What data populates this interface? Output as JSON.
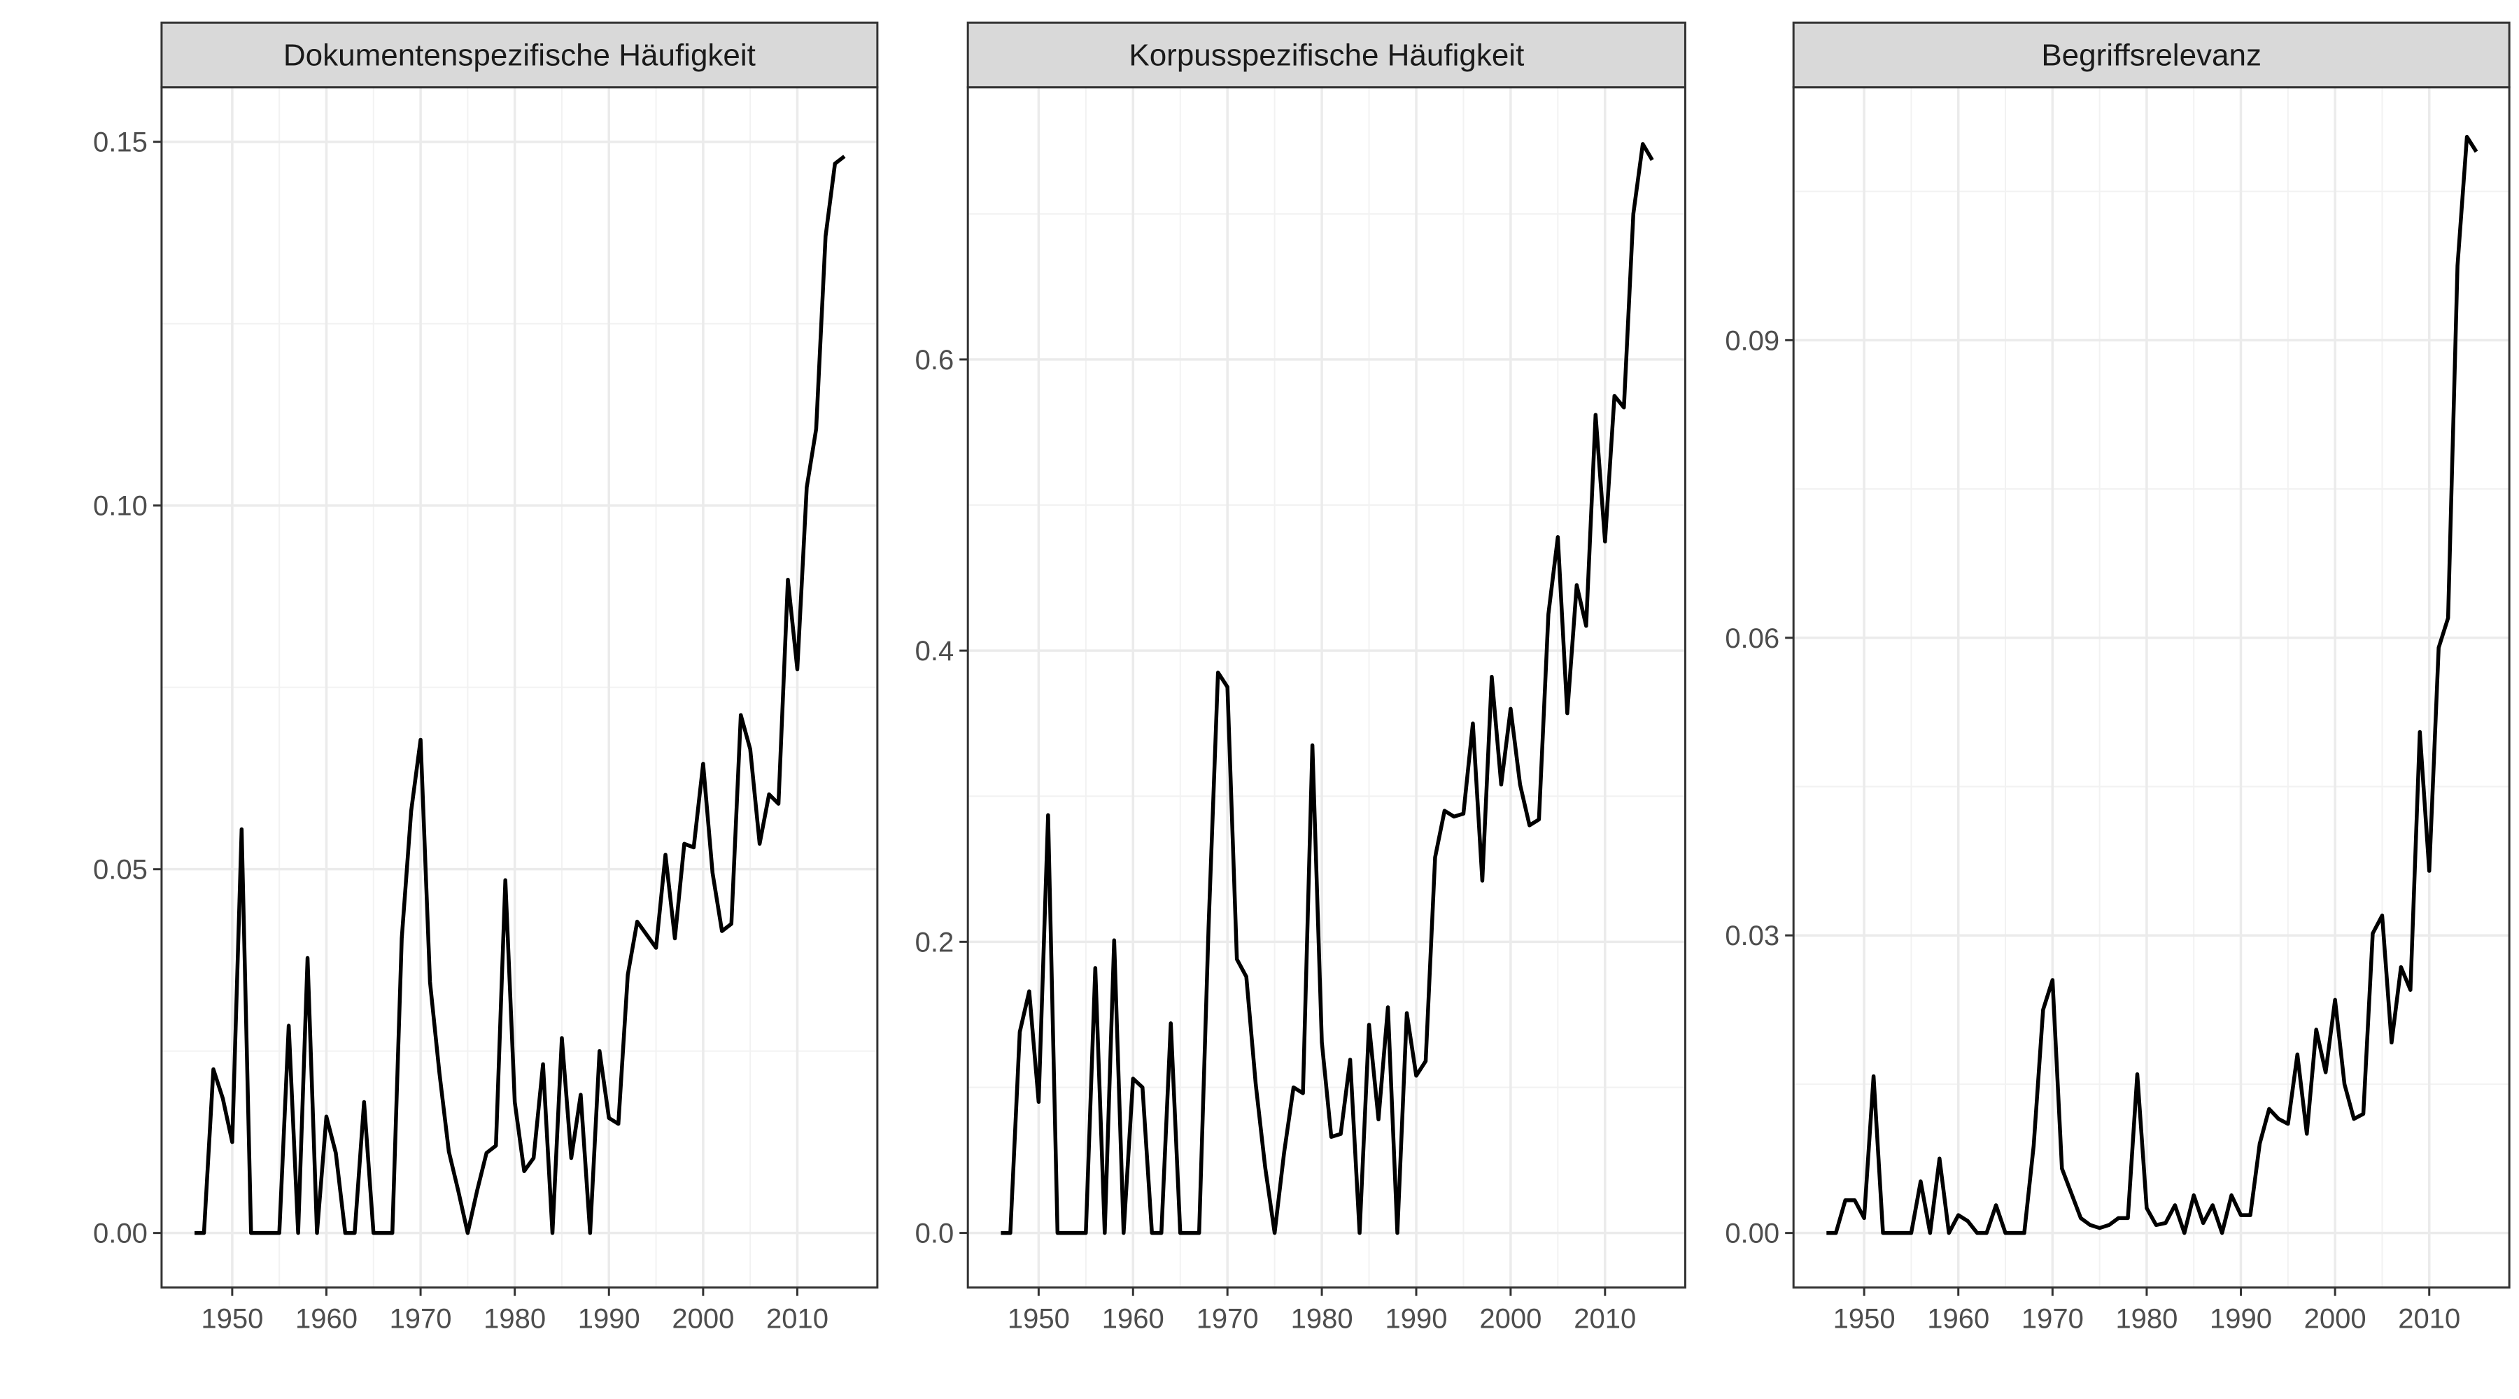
{
  "chart_data": [
    {
      "type": "line",
      "title": "Dokumentenspezifische Häufigkeit",
      "xlabel": "",
      "ylabel": "",
      "xlim": [
        1945.2,
        1952.0
      ],
      "ylim": [
        -0.0075,
        0.1575
      ],
      "x_ticks": [
        1950,
        1960,
        1970,
        1980,
        1990,
        2000,
        2010
      ],
      "x_tick_labels": [
        "1950",
        "1960",
        "1970",
        "1980",
        "1990",
        "2000",
        "2010"
      ],
      "y_ticks": [
        0.0,
        0.05,
        0.1,
        0.15
      ],
      "y_tick_labels": [
        "0.00",
        "0.05",
        "0.10",
        "0.15"
      ],
      "grid": true,
      "series": [
        {
          "color": "#000000",
          "x": [
            1946,
            1947,
            1948,
            1949,
            1950,
            1951,
            1952,
            1953,
            1954,
            1955,
            1956,
            1957,
            1958,
            1959,
            1960,
            1961,
            1962,
            1963,
            1964,
            1965,
            1966,
            1967,
            1968,
            1969,
            1970,
            1971,
            1972,
            1973,
            1974,
            1975,
            1976,
            1977,
            1978,
            1979,
            1980,
            1981,
            1982,
            1983,
            1984,
            1985,
            1986,
            1987,
            1988,
            1989,
            1990,
            1991,
            1992,
            1993,
            1994,
            1995,
            1996,
            1997,
            1998,
            1999,
            2000,
            2001,
            2002,
            2003,
            2004,
            2005,
            2006,
            2007,
            2008,
            2009,
            2010,
            2011,
            2012,
            2013,
            2014,
            2015
          ],
          "values": [
            0,
            0,
            0.0225,
            0.0185,
            0.0125,
            0.0555,
            0,
            0,
            0,
            0,
            0.0285,
            0,
            0.0378,
            0,
            0.016,
            0.011,
            0,
            0,
            0.018,
            0,
            0,
            0,
            0.0405,
            0.058,
            0.0678,
            0.0345,
            0.022,
            0.0112,
            0.0058,
            0,
            0.0058,
            0.011,
            0.012,
            0.0485,
            0.018,
            0.0085,
            0.0103,
            0.0232,
            0,
            0.0268,
            0.0103,
            0.019,
            0,
            0.025,
            0.0158,
            0.015,
            0.0355,
            0.0428,
            0.041,
            0.0392,
            0.052,
            0.0405,
            0.0535,
            0.053,
            0.0645,
            0.0495,
            0.0415,
            0.0425,
            0.0712,
            0.0665,
            0.0535,
            0.0603,
            0.059,
            0.0898,
            0.0775,
            0.1025,
            0.1105,
            0.137,
            0.147,
            0.148
          ]
        }
      ]
    },
    {
      "type": "line",
      "title": "Korpusspezifische Häufigkeit",
      "xlabel": "",
      "ylabel": "",
      "ylim": [
        -0.0375,
        0.787
      ],
      "x_ticks": [
        1950,
        1960,
        1970,
        1980,
        1990,
        2000,
        2010
      ],
      "x_tick_labels": [
        "1950",
        "1960",
        "1970",
        "1980",
        "1990",
        "2000",
        "2010"
      ],
      "y_ticks": [
        0.0,
        0.2,
        0.4,
        0.6
      ],
      "y_tick_labels": [
        "0.0",
        "0.2",
        "0.4",
        "0.6"
      ],
      "grid": true,
      "series": [
        {
          "color": "#000000",
          "x": [
            1946,
            1947,
            1948,
            1949,
            1950,
            1951,
            1952,
            1953,
            1954,
            1955,
            1956,
            1957,
            1958,
            1959,
            1960,
            1961,
            1962,
            1963,
            1964,
            1965,
            1966,
            1967,
            1968,
            1969,
            1970,
            1971,
            1972,
            1973,
            1974,
            1975,
            1976,
            1977,
            1978,
            1979,
            1980,
            1981,
            1982,
            1983,
            1984,
            1985,
            1986,
            1987,
            1988,
            1989,
            1990,
            1991,
            1992,
            1993,
            1994,
            1995,
            1996,
            1997,
            1998,
            1999,
            2000,
            2001,
            2002,
            2003,
            2004,
            2005,
            2006,
            2007,
            2008,
            2009,
            2010,
            2011,
            2012,
            2013,
            2014,
            2015
          ],
          "values": [
            0,
            0,
            0.138,
            0.166,
            0.09,
            0.287,
            0,
            0,
            0,
            0,
            0.182,
            0,
            0.201,
            0,
            0.106,
            0.1,
            0,
            0,
            0.144,
            0,
            0,
            0,
            0.21,
            0.385,
            0.375,
            0.188,
            0.176,
            0.102,
            0.045,
            0,
            0.055,
            0.1,
            0.096,
            0.335,
            0.131,
            0.066,
            0.068,
            0.119,
            0,
            0.143,
            0.078,
            0.155,
            0,
            0.151,
            0.108,
            0.118,
            0.258,
            0.29,
            0.286,
            0.288,
            0.35,
            0.242,
            0.382,
            0.308,
            0.36,
            0.308,
            0.28,
            0.284,
            0.425,
            0.478,
            0.357,
            0.445,
            0.417,
            0.562,
            0.475,
            0.575,
            0.567,
            0.7,
            0.748,
            0.737
          ]
        }
      ]
    },
    {
      "type": "line",
      "title": "Begriffsrelevanz",
      "xlabel": "",
      "ylabel": "",
      "ylim": [
        -0.0055,
        0.1155
      ],
      "x_ticks": [
        1950,
        1960,
        1970,
        1980,
        1990,
        2000,
        2010
      ],
      "x_tick_labels": [
        "1950",
        "1960",
        "1970",
        "1980",
        "1990",
        "2000",
        "2010"
      ],
      "y_ticks": [
        0.0,
        0.03,
        0.06,
        0.09
      ],
      "y_tick_labels": [
        "0.00",
        "0.03",
        "0.06",
        "0.09"
      ],
      "grid": true,
      "series": [
        {
          "color": "#000000",
          "x": [
            1946,
            1947,
            1948,
            1949,
            1950,
            1951,
            1952,
            1953,
            1954,
            1955,
            1956,
            1957,
            1958,
            1959,
            1960,
            1961,
            1962,
            1963,
            1964,
            1965,
            1966,
            1967,
            1968,
            1969,
            1970,
            1971,
            1972,
            1973,
            1974,
            1975,
            1976,
            1977,
            1978,
            1979,
            1980,
            1981,
            1982,
            1983,
            1984,
            1985,
            1986,
            1987,
            1988,
            1989,
            1990,
            1991,
            1992,
            1993,
            1994,
            1995,
            1996,
            1997,
            1998,
            1999,
            2000,
            2001,
            2002,
            2003,
            2004,
            2005,
            2006,
            2007,
            2008,
            2009,
            2010,
            2011,
            2012,
            2013,
            2014,
            2015
          ],
          "values": [
            0,
            0,
            0.0033,
            0.0033,
            0.0015,
            0.0158,
            0,
            0,
            0,
            0,
            0.0052,
            0,
            0.0075,
            0,
            0.0018,
            0.0012,
            0,
            0,
            0.0028,
            0,
            0,
            0,
            0.0088,
            0.0225,
            0.0255,
            0.0065,
            0.004,
            0.0015,
            0.0008,
            0.0005,
            0.0008,
            0.0015,
            0.0015,
            0.016,
            0.0025,
            0.0008,
            0.001,
            0.0028,
            0,
            0.0038,
            0.001,
            0.0028,
            0,
            0.0038,
            0.0018,
            0.0018,
            0.009,
            0.0125,
            0.0115,
            0.011,
            0.018,
            0.01,
            0.0205,
            0.0162,
            0.0235,
            0.015,
            0.0115,
            0.012,
            0.0302,
            0.032,
            0.0192,
            0.0268,
            0.0245,
            0.0505,
            0.0365,
            0.059,
            0.062,
            0.0975,
            0.1105,
            0.109
          ]
        }
      ]
    }
  ]
}
